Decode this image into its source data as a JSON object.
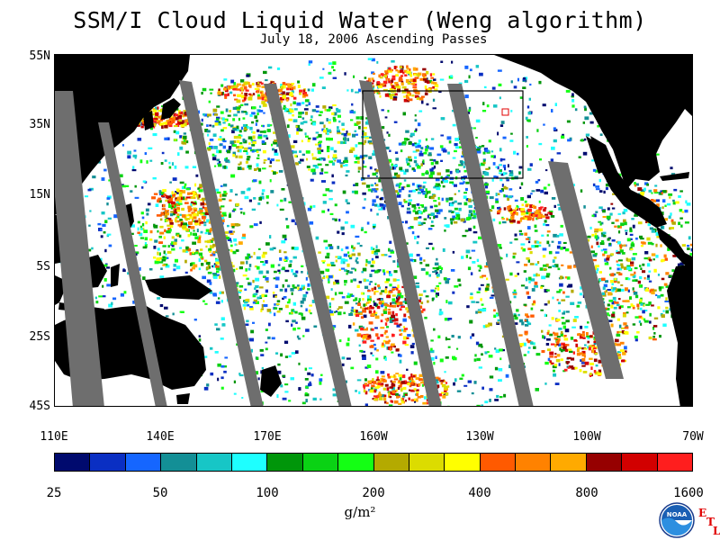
{
  "title": "SSM/I Cloud Liquid Water (Weng algorithm)",
  "subtitle": "July 18, 2006  Ascending Passes",
  "map": {
    "lat_labels": [
      "55N",
      "35N",
      "15N",
      "5S",
      "25S",
      "45S"
    ],
    "lon_labels": [
      "110E",
      "140E",
      "170E",
      "160W",
      "130W",
      "100W",
      "70W"
    ],
    "colors": {
      "land": "#000000",
      "no_data_gap": "#6e6e6e",
      "clear": "#ffffff",
      "inset_box": "#000000",
      "marker": "#e00000"
    }
  },
  "colorbar": {
    "colors": [
      "#000a6e",
      "#0a2fc3",
      "#1566ff",
      "#138f96",
      "#17c6c6",
      "#1effff",
      "#00960a",
      "#0ad214",
      "#14ff14",
      "#b4aa00",
      "#dcdc00",
      "#ffff00",
      "#ff5a00",
      "#ff8200",
      "#ffaa00",
      "#960000",
      "#d20000",
      "#ff1e1e"
    ],
    "labels": [
      "25",
      "50",
      "100",
      "200",
      "400",
      "800",
      "1600"
    ],
    "units": "g/m²"
  },
  "logo": {
    "icon": "noaa-logo-icon",
    "text": "NOAA",
    "etl_letters": [
      "E",
      "T",
      "L"
    ]
  }
}
